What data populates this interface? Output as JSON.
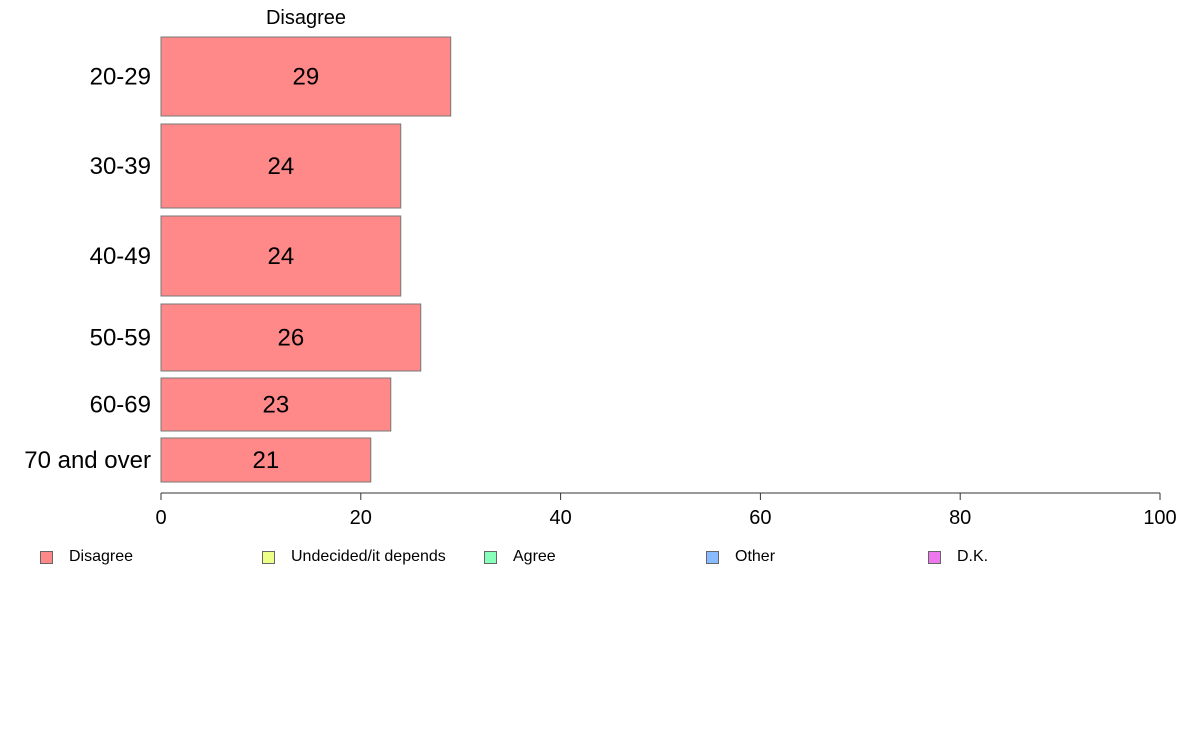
{
  "chart_data": {
    "type": "bar",
    "orientation": "horizontal",
    "panel_title": "Disagree",
    "categories": [
      "20-29",
      "30-39",
      "40-49",
      "50-59",
      "60-69",
      "70 and over"
    ],
    "series": [
      {
        "name": "Disagree",
        "values": [
          29,
          24,
          24,
          26,
          23,
          21
        ],
        "color": "#ff8888"
      }
    ],
    "data_labels": [
      "29",
      "24",
      "24",
      "26",
      "23",
      "21"
    ],
    "xlim": [
      0,
      100
    ],
    "xticks": [
      "0",
      "20",
      "40",
      "60",
      "80",
      "100"
    ],
    "xtick_values": [
      0,
      20,
      40,
      60,
      80,
      100
    ],
    "grid": false,
    "legend_position": "bottom",
    "legend": [
      {
        "label": "Disagree",
        "color": "#ff8888"
      },
      {
        "label": "Undecided/it depends",
        "color": "#eeff88"
      },
      {
        "label": "Agree",
        "color": "#88ffbb"
      },
      {
        "label": "Other",
        "color": "#88bbff"
      },
      {
        "label": "D.K.",
        "color": "#ee77ee"
      }
    ]
  }
}
